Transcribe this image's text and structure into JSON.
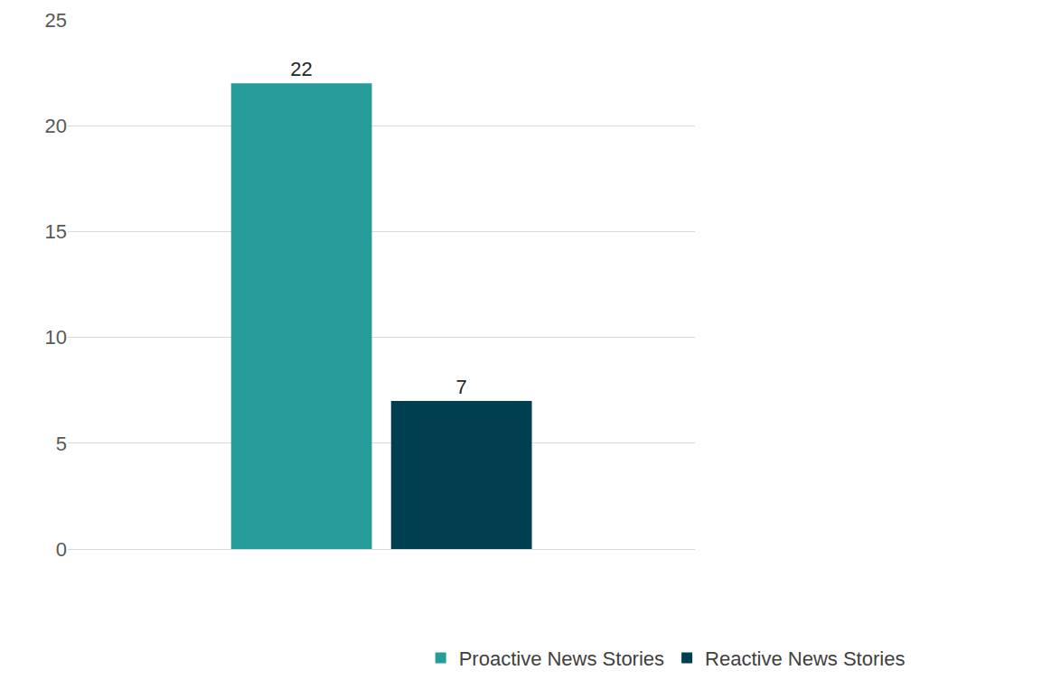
{
  "chart_data": {
    "type": "bar",
    "categories": [
      null
    ],
    "series": [
      {
        "name": "Proactive News Stories",
        "color": "#259b9a",
        "values": [
          22
        ]
      },
      {
        "name": "Reactive News Stories",
        "color": "#003f4f",
        "values": [
          7
        ]
      }
    ],
    "ylim": [
      0,
      25
    ],
    "yticks": [
      0,
      5,
      10,
      15,
      20,
      25
    ],
    "grid": true,
    "legend": "bottom",
    "data_labels": true,
    "tick_labels": "y"
  }
}
